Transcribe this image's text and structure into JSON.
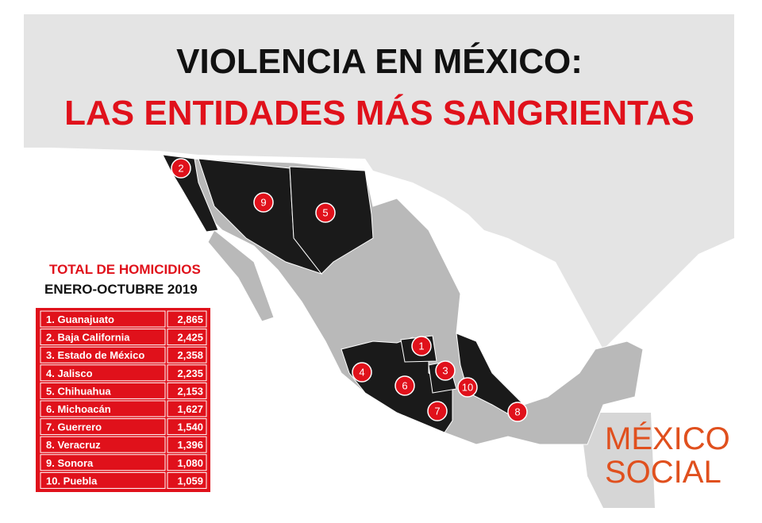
{
  "header": {
    "title_line1": "VIOLENCIA EN MÉXICO:",
    "title_line2": "LAS ENTIDADES MÁS SANGRIENTAS"
  },
  "table": {
    "title": "TOTAL DE HOMICIDIOS",
    "subtitle": "ENERO-OCTUBRE 2019",
    "rows": [
      [
        "1. Guanajuato",
        "2,865"
      ],
      [
        "2. Baja California",
        "2,425"
      ],
      [
        "3. Estado de México",
        "2,358"
      ],
      [
        "4. Jalisco",
        "2,235"
      ],
      [
        "5. Chihuahua",
        "2,153"
      ],
      [
        "6. Michoacán",
        "1,627"
      ],
      [
        "7. Guerrero",
        "1,540"
      ],
      [
        "8. Veracruz",
        "1,396"
      ],
      [
        "9. Sonora",
        "1,080"
      ],
      [
        "10. Puebla",
        "1,059"
      ]
    ]
  },
  "map": {
    "markers": [
      "1",
      "2",
      "3",
      "4",
      "5",
      "6",
      "7",
      "8",
      "9",
      "10"
    ]
  },
  "brand": {
    "line1": "MÉXICO",
    "line2": "SOCIAL"
  }
}
